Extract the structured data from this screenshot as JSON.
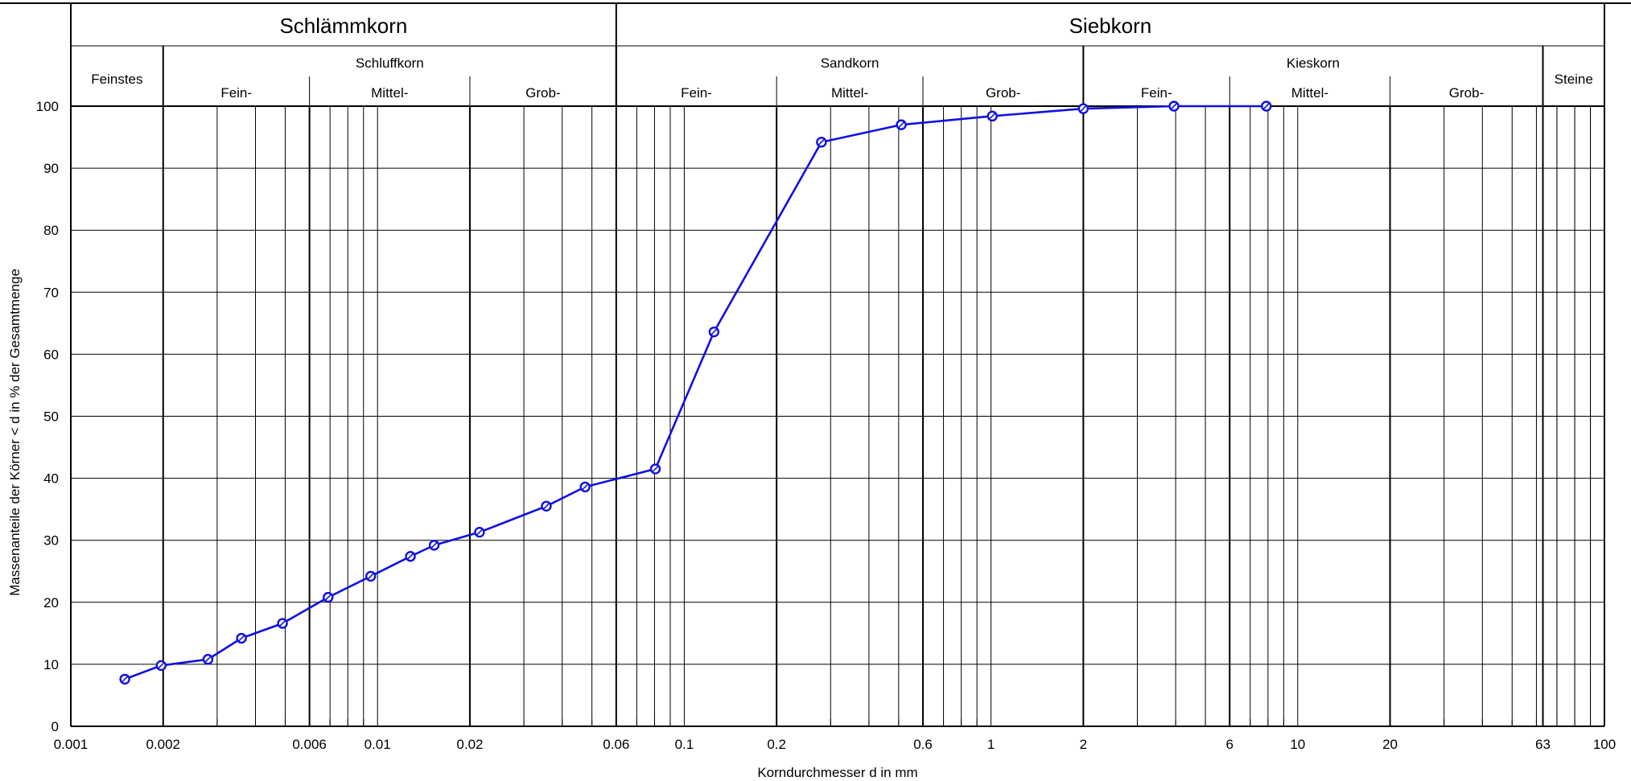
{
  "chart_data": {
    "type": "line",
    "xscale": "log",
    "xlim": [
      0.001,
      100
    ],
    "ylim": [
      0,
      100
    ],
    "xlabel": "Korndurchmesser d in mm",
    "ylabel": "Massenanteile der Körner < d in % der Gesamtmenge",
    "yticks": [
      0,
      10,
      20,
      30,
      40,
      50,
      60,
      70,
      80,
      90,
      100
    ],
    "xticks": [
      {
        "value": 0.001,
        "label": "0.001"
      },
      {
        "value": 0.002,
        "label": "0.002"
      },
      {
        "value": 0.006,
        "label": "0.006"
      },
      {
        "value": 0.01,
        "label": "0.01"
      },
      {
        "value": 0.02,
        "label": "0.02"
      },
      {
        "value": 0.06,
        "label": "0.06"
      },
      {
        "value": 0.1,
        "label": "0.1"
      },
      {
        "value": 0.2,
        "label": "0.2"
      },
      {
        "value": 0.6,
        "label": "0.6"
      },
      {
        "value": 1,
        "label": "1"
      },
      {
        "value": 2,
        "label": "2"
      },
      {
        "value": 6,
        "label": "6"
      },
      {
        "value": 10,
        "label": "10"
      },
      {
        "value": 20,
        "label": "20"
      },
      {
        "value": 63,
        "label": "63"
      },
      {
        "value": 100,
        "label": "100"
      }
    ],
    "header": {
      "groups": [
        {
          "name": "Schlämmkorn",
          "from": 0.001,
          "to": 0.06
        },
        {
          "name": "Siebkorn",
          "from": 0.06,
          "to": 100
        }
      ],
      "fractions": [
        {
          "name": "Feinstes",
          "from": 0.001,
          "to": 0.002
        },
        {
          "name": "Schluffkorn",
          "from": 0.002,
          "to": 0.06
        },
        {
          "name": "Sandkorn",
          "from": 0.06,
          "to": 2
        },
        {
          "name": "Kieskorn",
          "from": 2,
          "to": 63
        },
        {
          "name": "Steine",
          "from": 63,
          "to": 100
        }
      ],
      "subfractions": [
        {
          "name": "Fein-",
          "from": 0.002,
          "to": 0.006
        },
        {
          "name": "Mittel-",
          "from": 0.006,
          "to": 0.02
        },
        {
          "name": "Grob-",
          "from": 0.02,
          "to": 0.06
        },
        {
          "name": "Fein-",
          "from": 0.06,
          "to": 0.2
        },
        {
          "name": "Mittel-",
          "from": 0.2,
          "to": 0.6
        },
        {
          "name": "Grob-",
          "from": 0.6,
          "to": 2
        },
        {
          "name": "Fein-",
          "from": 2,
          "to": 6
        },
        {
          "name": "Mittel-",
          "from": 6,
          "to": 20
        },
        {
          "name": "Grob-",
          "from": 20,
          "to": 63
        }
      ]
    },
    "series": [
      {
        "color": "#1010e0",
        "x": [
          0.0015,
          0.00197,
          0.0028,
          0.0036,
          0.0049,
          0.0069,
          0.0095,
          0.0128,
          0.0153,
          0.0215,
          0.0355,
          0.0475,
          0.0805,
          0.125,
          0.28,
          0.51,
          1.01,
          2.0,
          3.95,
          7.9
        ],
        "y": [
          7.6,
          9.8,
          10.8,
          14.2,
          16.6,
          20.8,
          24.2,
          27.4,
          29.2,
          31.3,
          35.5,
          38.6,
          41.5,
          63.6,
          94.2,
          97.0,
          98.4,
          99.6,
          100,
          100
        ]
      }
    ]
  }
}
